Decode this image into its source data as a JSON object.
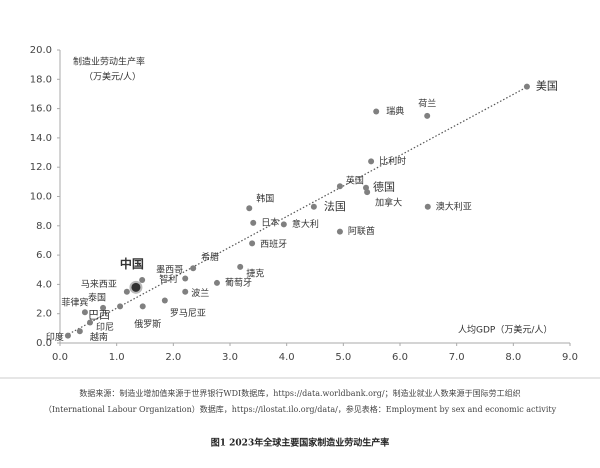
{
  "chart_data": {
    "type": "scatter",
    "y_label": [
      "制造业劳动生产率",
      "（万美元/人）"
    ],
    "x_label": "人均GDP（万美元/人）",
    "labels": [
      "美国",
      "荷兰",
      "瑞典",
      "比利时",
      "英国",
      "德国",
      "加拿大",
      "澳大利亚",
      "法国",
      "韩国",
      "日本",
      "意大利",
      "阿联酋",
      "西班牙",
      "希腊",
      "捷克",
      "葡萄牙",
      "墨西哥",
      "智利",
      "中国",
      "马来西亚",
      "波兰",
      "泰国",
      "罗马尼亚",
      "菲律宾",
      "巴西",
      "俄罗斯",
      "印尼",
      "越南",
      "印度"
    ],
    "x": [
      8.24,
      6.48,
      5.58,
      5.49,
      4.94,
      5.4,
      5.42,
      6.49,
      4.48,
      3.34,
      3.41,
      3.95,
      4.94,
      3.39,
      2.35,
      3.18,
      2.77,
      1.45,
      2.21,
      1.34,
      1.18,
      2.21,
      0.76,
      1.85,
      0.44,
      1.06,
      1.46,
      0.53,
      0.35,
      0.14
    ],
    "values": [
      17.5,
      15.5,
      15.8,
      12.4,
      10.7,
      10.6,
      10.3,
      9.3,
      9.3,
      9.2,
      8.2,
      8.1,
      7.6,
      6.8,
      5.1,
      5.2,
      4.1,
      4.3,
      4.4,
      3.8,
      3.5,
      3.5,
      2.4,
      2.9,
      2.1,
      2.5,
      2.5,
      1.4,
      0.8,
      0.5
    ],
    "color": "#808080",
    "trendline": {
      "x": [
        0.1,
        8.3
      ],
      "y": [
        0.5,
        17.6
      ]
    },
    "xlim": [
      0,
      9
    ],
    "ylim": [
      0,
      20
    ],
    "xticks": [
      {
        "value": 0,
        "label": "0.0"
      },
      {
        "value": 1,
        "label": "1.0"
      },
      {
        "value": 2,
        "label": "2.0"
      },
      {
        "value": 3,
        "label": "3.0"
      },
      {
        "value": 4,
        "label": "4.0"
      },
      {
        "value": 5,
        "label": "5.0"
      },
      {
        "value": 6,
        "label": "6.0"
      },
      {
        "value": 7,
        "label": "7.0"
      },
      {
        "value": 8,
        "label": "8.0"
      },
      {
        "value": 9,
        "label": "9.0"
      }
    ],
    "yticks": [
      {
        "value": 0,
        "label": "0.0"
      },
      {
        "value": 2,
        "label": "2.0"
      },
      {
        "value": 4,
        "label": "4.0"
      },
      {
        "value": 6,
        "label": "6.0"
      },
      {
        "value": 8,
        "label": "8.0"
      },
      {
        "value": 10,
        "label": "10.0"
      },
      {
        "value": 12,
        "label": "12.0"
      },
      {
        "value": 14,
        "label": "14.0"
      },
      {
        "value": 16,
        "label": "16.0"
      },
      {
        "value": 18,
        "label": "18.0"
      },
      {
        "value": 20,
        "label": "20.0"
      }
    ],
    "source_note": [
      "数据来源：制造业增加值来源于世界银行WDI数据库，https://data.worldbank.org/；制造业就业人数来源于国际劳工组织",
      "（International Labour Organization）数据库，https://ilostat.ilo.org/data/，参见表格：Employment by sex and economic activity"
    ],
    "caption": "图1  2023年全球主要国家制造业劳动生产率"
  }
}
